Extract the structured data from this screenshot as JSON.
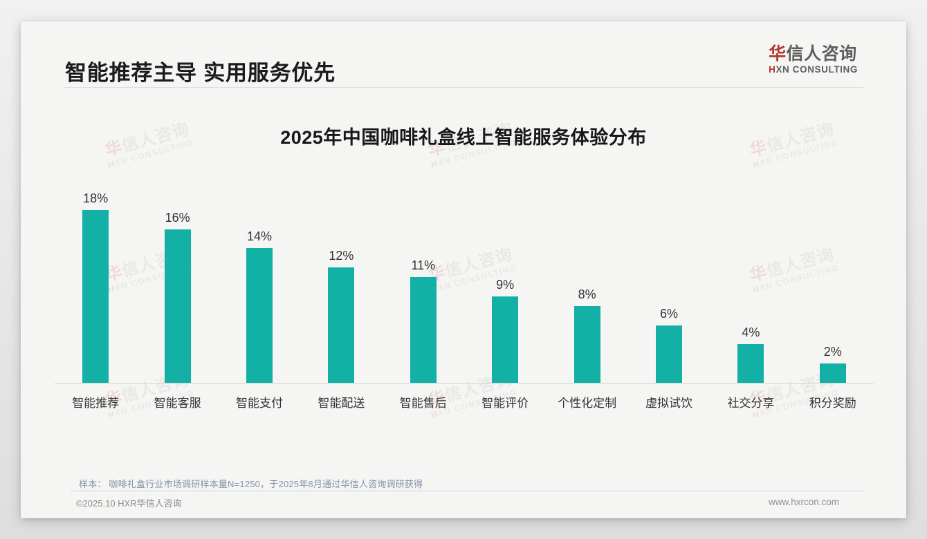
{
  "header": {
    "title": "智能推荐主导 实用服务优先"
  },
  "logo": {
    "cn_first": "华",
    "cn_rest": "信人咨询",
    "en_first": "H",
    "en_rest": "XN CONSULTING",
    "red": "#b5362a",
    "gray": "#5d5d5d"
  },
  "watermark": {
    "cn_first": "华",
    "cn_rest": "信人咨询",
    "en_first": "H",
    "en_rest": "XN CONSULTING"
  },
  "chart_data": {
    "type": "bar",
    "title": "2025年中国咖啡礼盒线上智能服务体验分布",
    "categories": [
      "智能推荐",
      "智能客服",
      "智能支付",
      "智能配送",
      "智能售后",
      "智能评价",
      "个性化定制",
      "虚拟试饮",
      "社交分享",
      "积分奖励"
    ],
    "values": [
      18,
      16,
      14,
      12,
      11,
      9,
      8,
      6,
      4,
      2
    ],
    "value_labels": [
      "18%",
      "16%",
      "14%",
      "12%",
      "11%",
      "9%",
      "8%",
      "6%",
      "4%",
      "2%"
    ],
    "unit": "%",
    "bar_color": "#13b0a5",
    "xlabel": "",
    "ylabel": "",
    "ylim": [
      0,
      20
    ],
    "grid": false,
    "legend": false
  },
  "footnote": {
    "text": "样本： 咖啡礼盒行业市场调研样本量N=1250，于2025年8月通过华信人咨询调研获得"
  },
  "footer": {
    "left": "©2025.10 HXR华信人咨询",
    "right": "www.hxrcon.com"
  }
}
